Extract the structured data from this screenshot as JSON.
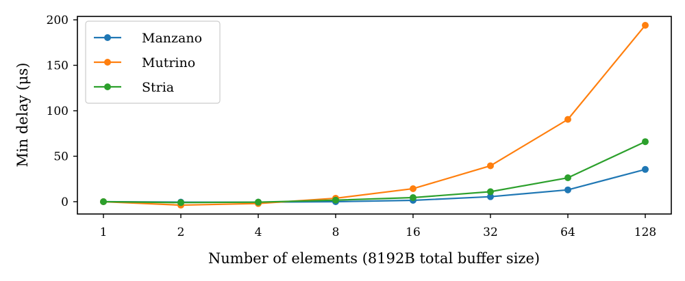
{
  "chart_data": {
    "type": "line",
    "title": "",
    "xlabel": "Number of elements (8192B total buffer size)",
    "ylabel": "Min delay (μs)",
    "x_scale": "log2",
    "categories": [
      "1",
      "2",
      "4",
      "8",
      "16",
      "32",
      "64",
      "128"
    ],
    "x": [
      1,
      2,
      4,
      8,
      16,
      32,
      64,
      128
    ],
    "ylim": [
      -13,
      203
    ],
    "yticks": [
      0,
      50,
      100,
      150,
      200
    ],
    "grid": false,
    "legend_position": "top-left",
    "series": [
      {
        "name": "Manzano",
        "color": "#1f77b4",
        "values": [
          0,
          -0.5,
          -0.5,
          0,
          1.5,
          5.5,
          13,
          35.5
        ]
      },
      {
        "name": "Mutrino",
        "color": "#ff7f0e",
        "values": [
          0,
          -3.8,
          -2,
          3.8,
          14.3,
          39.5,
          90.5,
          194
        ]
      },
      {
        "name": "Stria",
        "color": "#2ca02c",
        "values": [
          0,
          -1,
          -0.5,
          1.7,
          4.5,
          11,
          26.3,
          66
        ]
      }
    ]
  }
}
